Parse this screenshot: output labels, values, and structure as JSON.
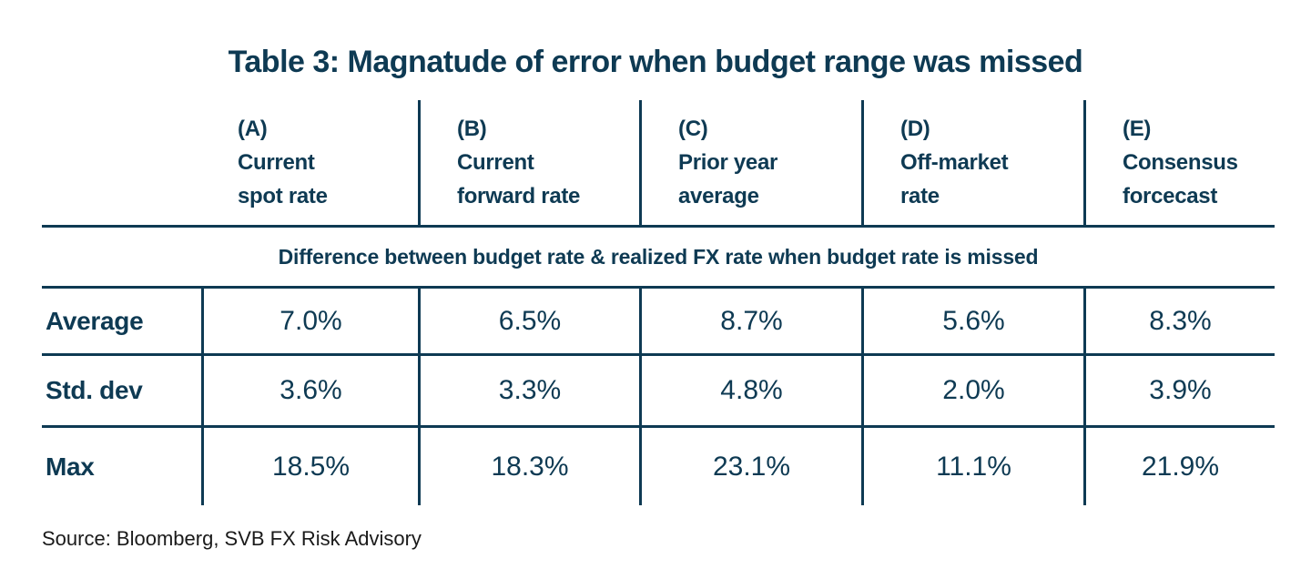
{
  "title": "Table 3: Magnatude of error when budget range was missed",
  "table": {
    "columns": [
      {
        "tag": "(A)",
        "line1": "Current",
        "line2": "spot rate"
      },
      {
        "tag": "(B)",
        "line1": "Current",
        "line2": "forward rate"
      },
      {
        "tag": "(C)",
        "line1": "Prior year",
        "line2": "average"
      },
      {
        "tag": "(D)",
        "line1": "Off-market",
        "line2": "rate"
      },
      {
        "tag": "(E)",
        "line1": "Consensus",
        "line2": "forcecast"
      }
    ],
    "subheader": "Difference between budget rate & realized FX rate when budget rate is missed",
    "rows": [
      {
        "label": "Average",
        "values": [
          "7.0%",
          "6.5%",
          "8.7%",
          "5.6%",
          "8.3%"
        ]
      },
      {
        "label": "Std. dev",
        "values": [
          "3.6%",
          "3.3%",
          "4.8%",
          "2.0%",
          "3.9%"
        ]
      },
      {
        "label": "Max",
        "values": [
          "18.5%",
          "18.3%",
          "23.1%",
          "11.1%",
          "21.9%"
        ]
      }
    ]
  },
  "source": "Source: Bloomberg, SVB FX Risk Advisory",
  "colors": {
    "ink": "#0e3a53",
    "source_text": "#1a1a1a",
    "background": "#ffffff"
  }
}
